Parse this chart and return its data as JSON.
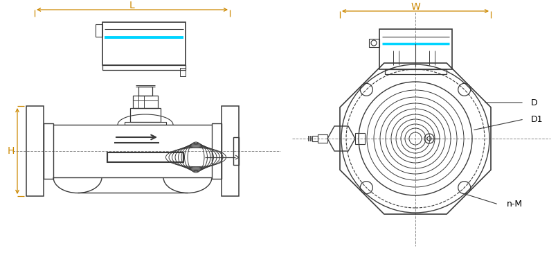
{
  "bg_color": "#ffffff",
  "line_color": "#3a3a3a",
  "dim_color": "#cc8800",
  "cyan_color": "#00d4ff",
  "dashed_color": "#888888",
  "fig_width": 8.06,
  "fig_height": 3.68,
  "dpi": 100,
  "labels": {
    "L": "L",
    "W": "W",
    "H": "H",
    "D": "D",
    "D1": "D1",
    "nM": "n-M"
  }
}
